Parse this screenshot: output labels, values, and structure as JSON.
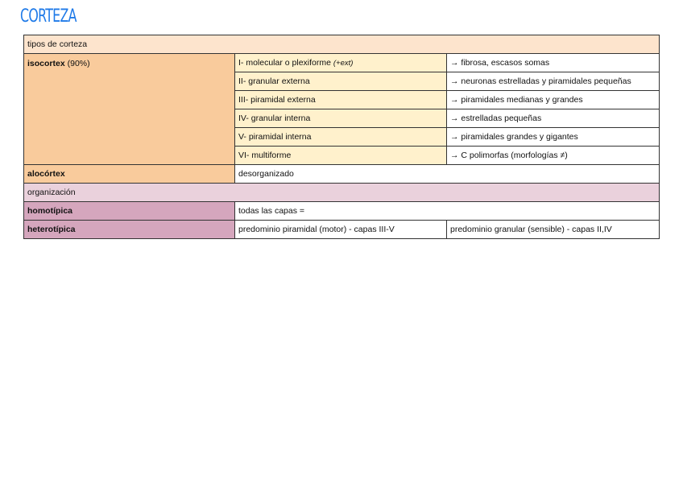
{
  "title": "CORTEZA",
  "colors": {
    "title": "#1f7ae8",
    "section_header_1": "#fde4cd",
    "isocortex": "#f9cb9c",
    "layers": "#fff1cc",
    "section_header_2": "#ead1dc",
    "organization": "#d5a6bd"
  },
  "section1": {
    "header": "tipos de corteza",
    "isocortex": {
      "label": "isocortex",
      "note": "(90%)"
    },
    "layers": [
      {
        "name": "I- molecular o plexiforme",
        "note": "(+ext)",
        "desc": "→ fibrosa, escasos somas"
      },
      {
        "name": "II- granular externa",
        "desc": "→ neuronas estrelladas y piramidales pequeñas"
      },
      {
        "name": "III- piramidal externa",
        "desc": "→ piramidales medianas y grandes"
      },
      {
        "name": "IV- granular interna",
        "desc": "→ estrelladas pequeñas"
      },
      {
        "name": "V- piramidal interna",
        "desc": "→ piramidales grandes y gigantes"
      },
      {
        "name": "VI- multiforme",
        "desc": "→ C polimorfas (morfologías ≠)"
      }
    ],
    "alocortex": {
      "label": "alocórtex",
      "desc": "desorganizado"
    }
  },
  "section2": {
    "header": "organización",
    "homotipica": {
      "label": "homotípica",
      "desc": "todas las capas ="
    },
    "heterotipica": {
      "label": "heterotípica",
      "desc1": "predominio piramidal (motor) - capas III-V",
      "desc2": "predominio granular (sensible) - capas II,IV"
    }
  }
}
